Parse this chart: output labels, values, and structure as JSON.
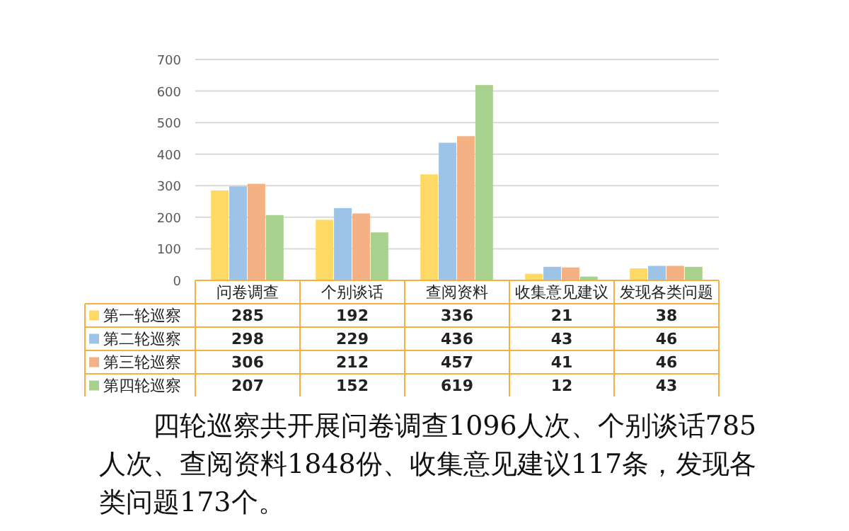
{
  "chart_data": {
    "type": "bar",
    "categories": [
      "问卷调查",
      "个别谈话",
      "查阅资料",
      "收集意见建议",
      "发现各类问题"
    ],
    "series": [
      {
        "name": "第一轮巡察",
        "color": "#ffd966",
        "values": [
          285,
          192,
          336,
          21,
          38
        ]
      },
      {
        "name": "第二轮巡察",
        "color": "#9dc3e6",
        "values": [
          298,
          229,
          436,
          43,
          46
        ]
      },
      {
        "name": "第三轮巡察",
        "color": "#f4b183",
        "values": [
          306,
          212,
          457,
          41,
          46
        ]
      },
      {
        "name": "第四轮巡察",
        "color": "#a9d18e",
        "values": [
          207,
          152,
          619,
          12,
          43
        ]
      }
    ],
    "ylim": [
      0,
      700
    ],
    "yticks": [
      0,
      100,
      200,
      300,
      400,
      500,
      600,
      700
    ],
    "grid": "y",
    "data_labels": true,
    "legend": "bottom left",
    "annotations": [
      "四轮巡察共开展问卷调查1096人次、个别谈话785人次、查阅资料1848份、收集意见建议117条，发现各类问题173个。"
    ]
  }
}
